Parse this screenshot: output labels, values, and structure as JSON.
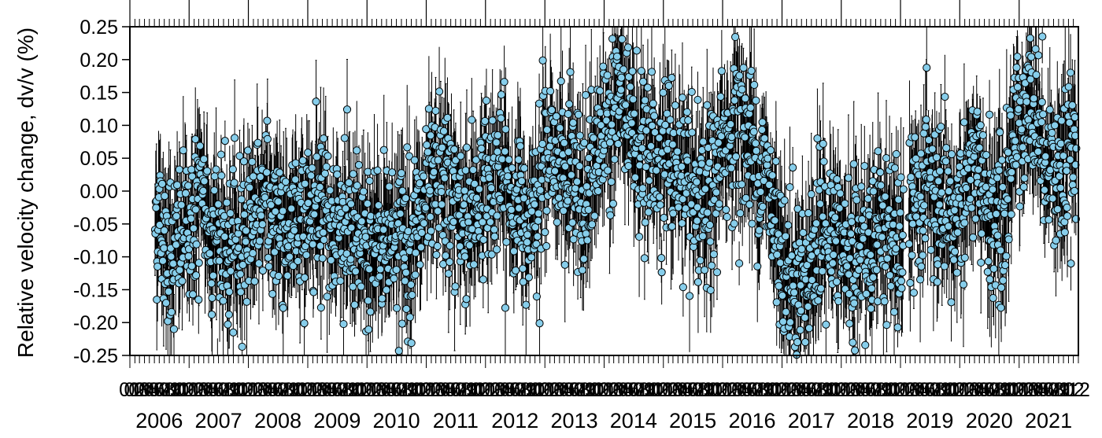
{
  "chart_data": {
    "type": "scatter",
    "title": "",
    "ylabel": "Relative velocity change, dv/v (%)",
    "xlabel": "",
    "xlim": [
      "2006-01-01",
      "2022-01-01"
    ],
    "ylim": [
      -0.25,
      0.25
    ],
    "y_ticks": [
      "0.25",
      "0.20",
      "0.15",
      "0.10",
      "0.05",
      "0.00",
      "-0.05",
      "-0.10",
      "-0.15",
      "-0.20",
      "-0.25"
    ],
    "x_year_labels": [
      "2006",
      "2007",
      "2008",
      "2009",
      "2010",
      "2011",
      "2012",
      "2013",
      "2014",
      "2015",
      "2016",
      "2017",
      "2018",
      "2019",
      "2020",
      "2021"
    ],
    "x_month_tick_labels_note": "01 02 03 04 05 06 07 08 09 10 11 12",
    "x_month_labels": [
      "01",
      "02",
      "03",
      "04",
      "05",
      "06",
      "07",
      "08",
      "09",
      "10",
      "11",
      "12"
    ],
    "last_month_label": "2",
    "marker_color": "#87CEEB",
    "marker_edge_color": "#000000",
    "errorbar_color": "#000000",
    "grid": false,
    "data_gaps": [
      [
        "2006-01-01",
        "2006-06-01"
      ],
      [
        "2019-01-20",
        "2019-02-20"
      ]
    ],
    "series": [
      {
        "monthly_mean_dvv": [
          {
            "x": "2006-06",
            "y": -0.04
          },
          {
            "x": "2006-09",
            "y": -0.09
          },
          {
            "x": "2006-12",
            "y": -0.06
          },
          {
            "x": "2007-03",
            "y": -0.02
          },
          {
            "x": "2007-06",
            "y": -0.07
          },
          {
            "x": "2007-09",
            "y": -0.1
          },
          {
            "x": "2007-12",
            "y": -0.05
          },
          {
            "x": "2008-03",
            "y": -0.02
          },
          {
            "x": "2008-06",
            "y": -0.04
          },
          {
            "x": "2008-09",
            "y": -0.06
          },
          {
            "x": "2008-12",
            "y": -0.04
          },
          {
            "x": "2009-03",
            "y": 0.0
          },
          {
            "x": "2009-06",
            "y": -0.05
          },
          {
            "x": "2009-09",
            "y": -0.07
          },
          {
            "x": "2009-12",
            "y": -0.09
          },
          {
            "x": "2010-03",
            "y": -0.07
          },
          {
            "x": "2010-06",
            "y": -0.06
          },
          {
            "x": "2010-09",
            "y": -0.08
          },
          {
            "x": "2010-12",
            "y": -0.04
          },
          {
            "x": "2011-03",
            "y": 0.02
          },
          {
            "x": "2011-06",
            "y": -0.02
          },
          {
            "x": "2011-09",
            "y": -0.04
          },
          {
            "x": "2011-12",
            "y": 0.0
          },
          {
            "x": "2012-03",
            "y": 0.03
          },
          {
            "x": "2012-06",
            "y": -0.02
          },
          {
            "x": "2012-09",
            "y": -0.04
          },
          {
            "x": "2012-12",
            "y": 0.04
          },
          {
            "x": "2013-03",
            "y": 0.06
          },
          {
            "x": "2013-06",
            "y": 0.01
          },
          {
            "x": "2013-09",
            "y": -0.02
          },
          {
            "x": "2013-12",
            "y": 0.08
          },
          {
            "x": "2014-03",
            "y": 0.15
          },
          {
            "x": "2014-06",
            "y": 0.1
          },
          {
            "x": "2014-09",
            "y": 0.04
          },
          {
            "x": "2014-12",
            "y": 0.06
          },
          {
            "x": "2015-03",
            "y": 0.04
          },
          {
            "x": "2015-06",
            "y": -0.02
          },
          {
            "x": "2015-09",
            "y": -0.04
          },
          {
            "x": "2015-12",
            "y": 0.05
          },
          {
            "x": "2016-03",
            "y": 0.1
          },
          {
            "x": "2016-06",
            "y": 0.07
          },
          {
            "x": "2016-09",
            "y": 0.02
          },
          {
            "x": "2016-12",
            "y": -0.08
          },
          {
            "x": "2017-03",
            "y": -0.14
          },
          {
            "x": "2017-06",
            "y": -0.12
          },
          {
            "x": "2017-09",
            "y": -0.06
          },
          {
            "x": "2017-12",
            "y": -0.08
          },
          {
            "x": "2018-03",
            "y": -0.12
          },
          {
            "x": "2018-06",
            "y": -0.08
          },
          {
            "x": "2018-09",
            "y": -0.04
          },
          {
            "x": "2018-12",
            "y": -0.1
          },
          {
            "x": "2019-06",
            "y": 0.02
          },
          {
            "x": "2019-09",
            "y": -0.06
          },
          {
            "x": "2019-12",
            "y": -0.04
          },
          {
            "x": "2020-03",
            "y": 0.04
          },
          {
            "x": "2020-06",
            "y": -0.02
          },
          {
            "x": "2020-09",
            "y": -0.06
          },
          {
            "x": "2020-12",
            "y": 0.1
          },
          {
            "x": "2021-03",
            "y": 0.14
          },
          {
            "x": "2021-06",
            "y": 0.06
          },
          {
            "x": "2021-09",
            "y": 0.02
          },
          {
            "x": "2021-12",
            "y": 0.04
          }
        ],
        "scatter_spread_dvv": 0.11,
        "typical_error_dvv": 0.06
      }
    ]
  }
}
